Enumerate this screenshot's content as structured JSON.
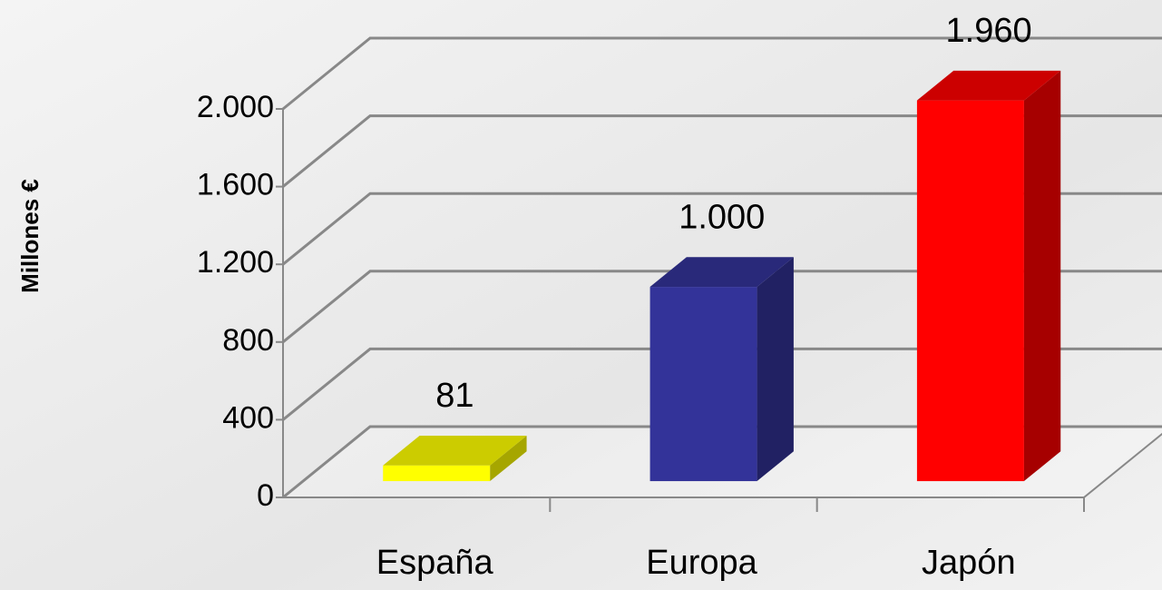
{
  "chart_data": {
    "type": "bar3d",
    "y_label": "Millones €",
    "categories": [
      "España",
      "Europa",
      "Japón"
    ],
    "values": [
      81,
      1000,
      1960
    ],
    "value_labels": [
      "81",
      "1.000",
      "1.960"
    ],
    "colors": [
      "#ffff00",
      "#333399",
      "#ff0000"
    ],
    "ylim": [
      0,
      2000
    ],
    "yticks": [
      0,
      400,
      800,
      {
        "value": 1200,
        "label": "1.200"
      },
      {
        "value": 1600,
        "label": "1.600"
      },
      {
        "value": 2000,
        "label": "2.000"
      }
    ],
    "grid": true
  }
}
